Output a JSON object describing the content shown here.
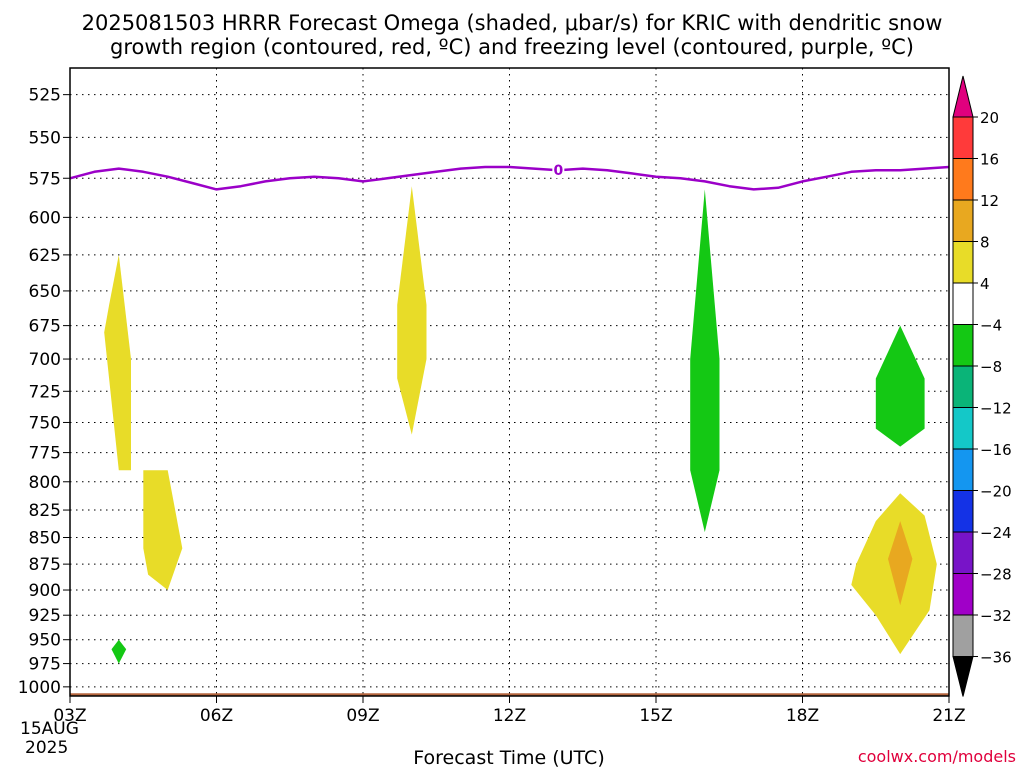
{
  "chart_data": {
    "type": "heatmap",
    "title_line1": "2025081503 HRRR Forecast Omega (shaded, μbar/s) for KRIC with dendritic snow",
    "title_line2": "growth region (contoured, red, ºC) and freezing level (contoured, purple, ºC)",
    "xlabel": "Forecast Time (UTC)",
    "ylabel": "",
    "x_ticks": [
      "03Z",
      "06Z",
      "09Z",
      "12Z",
      "15Z",
      "18Z",
      "21Z"
    ],
    "x_tick_hours": [
      3,
      6,
      9,
      12,
      15,
      18,
      21
    ],
    "x_date_label": [
      "15AUG",
      "2025"
    ],
    "xlim": [
      3,
      21
    ],
    "y_ticks": [
      525,
      550,
      575,
      600,
      625,
      650,
      675,
      700,
      725,
      750,
      775,
      800,
      825,
      850,
      875,
      900,
      925,
      950,
      975,
      1000
    ],
    "ylim": [
      1010,
      510
    ],
    "y_scale": "log-pressure (inverted)",
    "grid": true,
    "legend": "colorbar-right",
    "credit": "coolwx.com/models",
    "colorbar": {
      "labels": [
        "20",
        "16",
        "12",
        "8",
        "4",
        "−4",
        "−8",
        "−12",
        "−16",
        "−20",
        "−24",
        "−28",
        "−32",
        "−36"
      ],
      "colors": [
        "#e0007e",
        "#ff3a3a",
        "#ff7a1c",
        "#e8a820",
        "#e8dc28",
        "#ffffff",
        "#14c814",
        "#0ab478",
        "#14c8c8",
        "#1496f0",
        "#1432e6",
        "#7814c8",
        "#a000c8",
        "#a0a0a0",
        "#000000"
      ]
    },
    "freezing_level": {
      "label": "0",
      "color": "#9b00c8",
      "hours": [
        3,
        3.5,
        4,
        4.5,
        5,
        5.5,
        6,
        6.5,
        7,
        7.5,
        8,
        8.5,
        9,
        9.5,
        10,
        10.5,
        11,
        11.5,
        12,
        12.5,
        13,
        13.5,
        14,
        14.5,
        15,
        15.5,
        16,
        16.5,
        17,
        17.5,
        18,
        18.5,
        19,
        19.5,
        20,
        20.5,
        21
      ],
      "pressure": [
        575,
        571,
        569,
        571,
        574,
        578,
        582,
        580,
        577,
        575,
        574,
        575,
        577,
        575,
        573,
        571,
        569,
        568,
        568,
        569,
        570,
        569,
        570,
        572,
        574,
        575,
        577,
        580,
        582,
        581,
        577,
        574,
        571,
        570,
        570,
        569,
        568
      ]
    },
    "omega_regions": [
      {
        "name": "ascent-a",
        "value": 4,
        "color": "#e8dc28",
        "points": [
          [
            4.0,
            625
          ],
          [
            4.25,
            700
          ],
          [
            4.25,
            790
          ],
          [
            4.0,
            790
          ],
          [
            3.7,
            680
          ],
          [
            3.8,
            660
          ]
        ]
      },
      {
        "name": "ascent-b",
        "value": 4,
        "color": "#e8dc28",
        "points": [
          [
            4.5,
            790
          ],
          [
            5.0,
            790
          ],
          [
            5.3,
            860
          ],
          [
            5.0,
            900
          ],
          [
            4.6,
            885
          ],
          [
            4.5,
            860
          ]
        ]
      },
      {
        "name": "descent-a",
        "value": -4,
        "color": "#14c814",
        "points": [
          [
            4.0,
            950
          ],
          [
            4.15,
            960
          ],
          [
            4.0,
            975
          ],
          [
            3.85,
            960
          ]
        ]
      },
      {
        "name": "ascent-c",
        "value": 4,
        "color": "#e8dc28",
        "points": [
          [
            10.0,
            580
          ],
          [
            10.3,
            660
          ],
          [
            10.3,
            700
          ],
          [
            10.0,
            760
          ],
          [
            9.7,
            715
          ],
          [
            9.7,
            660
          ]
        ]
      },
      {
        "name": "descent-b",
        "value": -4,
        "color": "#14c814",
        "points": [
          [
            16.0,
            582
          ],
          [
            16.3,
            700
          ],
          [
            16.3,
            790
          ],
          [
            16.0,
            845
          ],
          [
            15.7,
            790
          ],
          [
            15.7,
            700
          ]
        ]
      },
      {
        "name": "descent-c",
        "value": -4,
        "color": "#14c814",
        "points": [
          [
            20.0,
            675
          ],
          [
            20.5,
            715
          ],
          [
            20.5,
            755
          ],
          [
            20.0,
            770
          ],
          [
            19.5,
            755
          ],
          [
            19.5,
            715
          ]
        ]
      },
      {
        "name": "ascent-d",
        "value": 4,
        "color": "#e8dc28",
        "points": [
          [
            20.0,
            810
          ],
          [
            20.5,
            830
          ],
          [
            20.75,
            875
          ],
          [
            20.6,
            920
          ],
          [
            20.0,
            965
          ],
          [
            19.5,
            925
          ],
          [
            19.0,
            895
          ],
          [
            19.1,
            875
          ],
          [
            19.5,
            835
          ]
        ]
      },
      {
        "name": "ascent-d-core",
        "value": 8,
        "color": "#e8a820",
        "points": [
          [
            20.0,
            835
          ],
          [
            20.25,
            870
          ],
          [
            20.0,
            915
          ],
          [
            19.75,
            870
          ]
        ]
      }
    ],
    "terrain": {
      "color": "#b4643c",
      "pressure": 1007
    }
  }
}
